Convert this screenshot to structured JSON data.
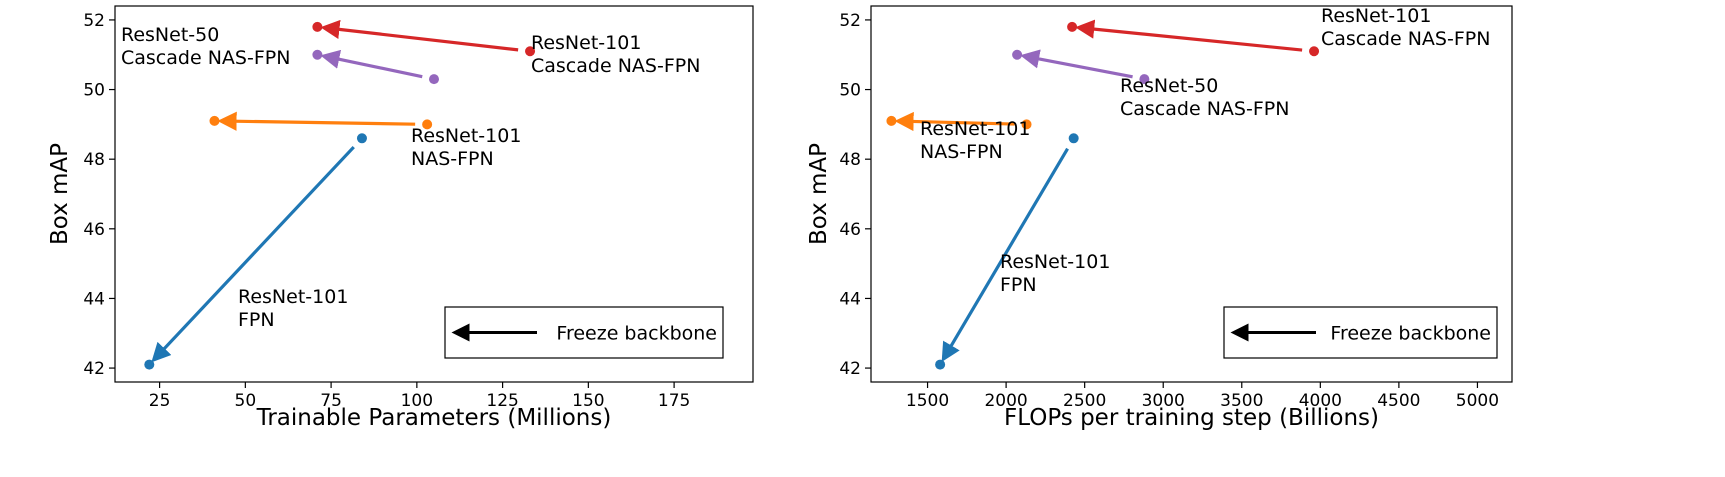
{
  "chart_data": [
    {
      "type": "scatter",
      "xlabel": "Trainable Parameters (Millions)",
      "ylabel": "Box mAP",
      "xlim": [
        12,
        198
      ],
      "ylim": [
        41.6,
        52.4
      ],
      "xticks": [
        25,
        50,
        75,
        100,
        125,
        150,
        175
      ],
      "yticks": [
        42,
        44,
        46,
        48,
        50,
        52
      ],
      "series": [
        {
          "color": "#d62728",
          "from": {
            "x": 133,
            "y": 51.1
          },
          "to": {
            "x": 71,
            "y": 51.8
          },
          "label": [
            "ResNet-101",
            "Cascade NAS-FPN"
          ]
        },
        {
          "color": "#9467bd",
          "from": {
            "x": 105,
            "y": 50.3
          },
          "to": {
            "x": 71,
            "y": 51.0
          },
          "label": [
            "ResNet-50",
            "Cascade NAS-FPN"
          ]
        },
        {
          "color": "#ff7f0e",
          "from": {
            "x": 103,
            "y": 49.0
          },
          "to": {
            "x": 41,
            "y": 49.1
          },
          "label": [
            "ResNet-101",
            "NAS-FPN"
          ]
        },
        {
          "color": "#1f77b4",
          "from": {
            "x": 84,
            "y": 48.6
          },
          "to": {
            "x": 22,
            "y": 42.1
          },
          "label": [
            "ResNet-101",
            "FPN"
          ]
        }
      ],
      "legend": {
        "text": "Freeze backbone",
        "placement": "bottom-right"
      }
    },
    {
      "type": "scatter",
      "xlabel": "FLOPs per training step (Billions)",
      "ylabel": "Box mAP",
      "xlim": [
        1140,
        5220
      ],
      "ylim": [
        41.6,
        52.4
      ],
      "xticks": [
        1500,
        2000,
        2500,
        3000,
        3500,
        4000,
        4500,
        5000
      ],
      "yticks": [
        42,
        44,
        46,
        48,
        50,
        52
      ],
      "series": [
        {
          "color": "#d62728",
          "from": {
            "x": 3960,
            "y": 51.1
          },
          "to": {
            "x": 2420,
            "y": 51.8
          },
          "label": [
            "ResNet-101",
            "Cascade NAS-FPN"
          ]
        },
        {
          "color": "#9467bd",
          "from": {
            "x": 2880,
            "y": 50.3
          },
          "to": {
            "x": 2070,
            "y": 51.0
          },
          "label": [
            "ResNet-50",
            "Cascade NAS-FPN"
          ]
        },
        {
          "color": "#ff7f0e",
          "from": {
            "x": 2130,
            "y": 49.0
          },
          "to": {
            "x": 1270,
            "y": 49.1
          },
          "label": [
            "ResNet-101",
            "NAS-FPN"
          ]
        },
        {
          "color": "#1f77b4",
          "from": {
            "x": 2430,
            "y": 48.6
          },
          "to": {
            "x": 1580,
            "y": 42.1
          },
          "label": [
            "ResNet-101",
            "FPN"
          ]
        }
      ],
      "legend": {
        "text": "Freeze backbone",
        "placement": "bottom-right"
      }
    }
  ]
}
